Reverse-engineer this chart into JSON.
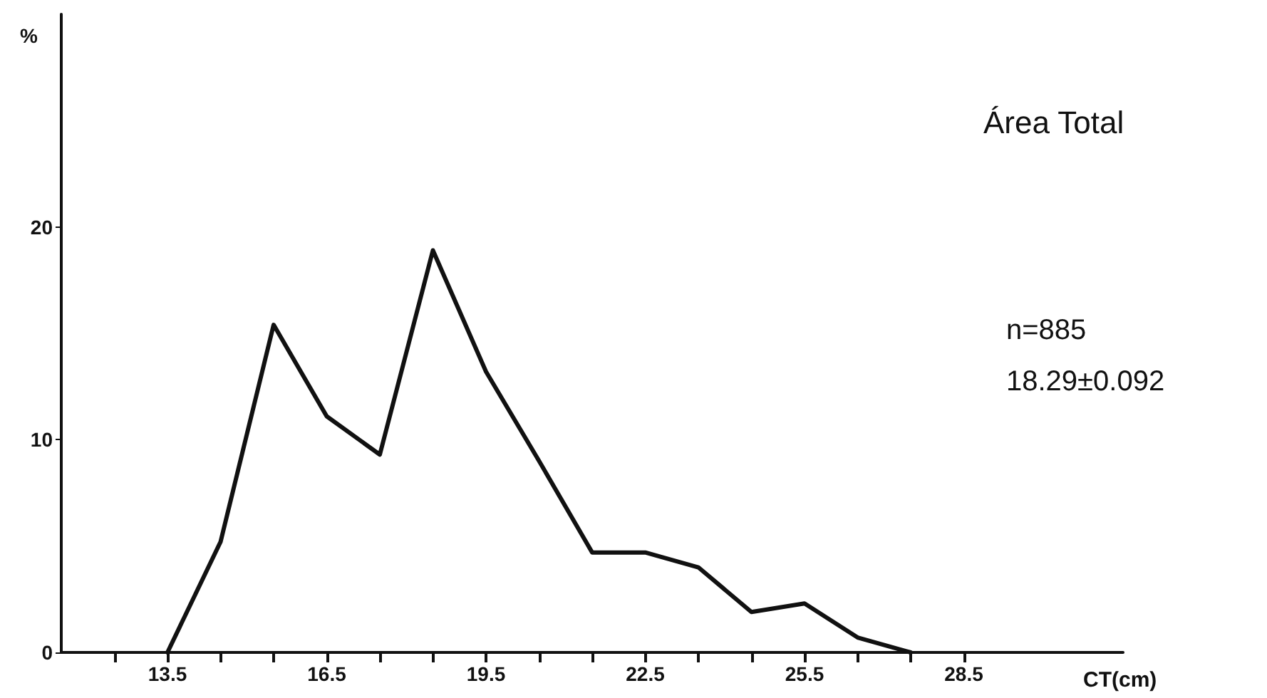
{
  "chart_data": {
    "type": "line",
    "title": "Área Total",
    "xlabel": "CT(cm)",
    "ylabel": "%",
    "annotations": [
      "n=885",
      "18.29±0.092"
    ],
    "x": [
      13.5,
      14.5,
      15.5,
      16.5,
      17.5,
      18.5,
      19.5,
      20.5,
      21.5,
      22.5,
      23.5,
      24.5,
      25.5,
      26.5,
      27.5
    ],
    "series": [
      {
        "color": "#111111",
        "values": [
          0,
          5.2,
          15.4,
          11.1,
          9.3,
          18.9,
          13.2,
          9.0,
          4.7,
          4.7,
          4.0,
          1.9,
          2.3,
          0.7,
          0
        ]
      }
    ],
    "xlim": [
      11.5,
      31.5
    ],
    "xticks": [
      {
        "value": 12.5,
        "label": null
      },
      13.5,
      {
        "value": 14.5,
        "label": null
      },
      {
        "value": 15.5,
        "label": null
      },
      16.5,
      {
        "value": 17.5,
        "label": null
      },
      {
        "value": 18.5,
        "label": null
      },
      19.5,
      {
        "value": 20.5,
        "label": null
      },
      {
        "value": 21.5,
        "label": null
      },
      22.5,
      {
        "value": 23.5,
        "label": null
      },
      {
        "value": 24.5,
        "label": null
      },
      25.5,
      {
        "value": 26.5,
        "label": null
      },
      {
        "value": 27.5,
        "label": null
      },
      28.5
    ],
    "ylim": [
      0,
      30
    ],
    "yticks": [
      0,
      10,
      20
    ],
    "grid": false,
    "marker": "none",
    "line_style": "solid"
  }
}
